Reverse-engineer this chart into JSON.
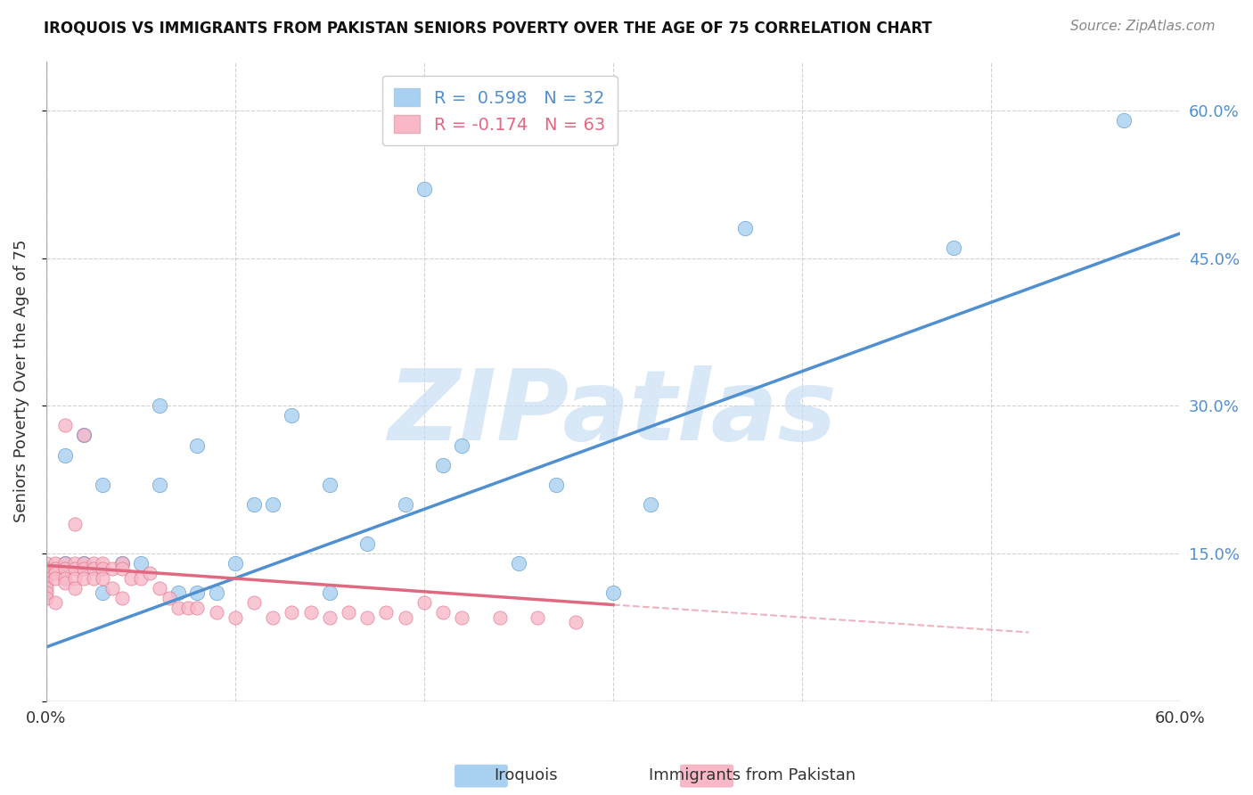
{
  "title": "IROQUOIS VS IMMIGRANTS FROM PAKISTAN SENIORS POVERTY OVER THE AGE OF 75 CORRELATION CHART",
  "source": "Source: ZipAtlas.com",
  "ylabel": "Seniors Poverty Over the Age of 75",
  "xmin": 0.0,
  "xmax": 0.6,
  "ymin": 0.0,
  "ymax": 0.65,
  "xticks": [
    0.0,
    0.1,
    0.2,
    0.3,
    0.4,
    0.5,
    0.6
  ],
  "ytick_positions": [
    0.0,
    0.15,
    0.3,
    0.45,
    0.6
  ],
  "blue_color": "#A8D0F0",
  "pink_color": "#F8B8C8",
  "trend_blue": "#5090D0",
  "trend_pink": "#E06880",
  "watermark": "ZIPatlas",
  "iroquois_x": [
    0.01,
    0.02,
    0.03,
    0.04,
    0.05,
    0.06,
    0.07,
    0.08,
    0.09,
    0.1,
    0.11,
    0.13,
    0.15,
    0.17,
    0.19,
    0.21,
    0.22,
    0.25,
    0.27,
    0.2,
    0.37,
    0.48,
    0.57,
    0.3,
    0.32,
    0.01,
    0.02,
    0.03,
    0.06,
    0.08,
    0.12,
    0.15
  ],
  "iroquois_y": [
    0.14,
    0.14,
    0.22,
    0.14,
    0.14,
    0.22,
    0.11,
    0.26,
    0.11,
    0.14,
    0.2,
    0.29,
    0.22,
    0.16,
    0.2,
    0.24,
    0.26,
    0.14,
    0.22,
    0.52,
    0.48,
    0.46,
    0.59,
    0.11,
    0.2,
    0.25,
    0.27,
    0.11,
    0.3,
    0.11,
    0.2,
    0.11
  ],
  "pakistan_x": [
    0.0,
    0.0,
    0.0,
    0.0,
    0.0,
    0.0,
    0.0,
    0.0,
    0.005,
    0.005,
    0.005,
    0.005,
    0.005,
    0.01,
    0.01,
    0.01,
    0.01,
    0.01,
    0.015,
    0.015,
    0.015,
    0.015,
    0.015,
    0.02,
    0.02,
    0.02,
    0.02,
    0.025,
    0.025,
    0.025,
    0.03,
    0.03,
    0.03,
    0.035,
    0.035,
    0.04,
    0.04,
    0.04,
    0.045,
    0.05,
    0.055,
    0.06,
    0.065,
    0.07,
    0.075,
    0.08,
    0.09,
    0.1,
    0.11,
    0.12,
    0.13,
    0.14,
    0.15,
    0.16,
    0.17,
    0.18,
    0.19,
    0.2,
    0.21,
    0.22,
    0.24,
    0.26,
    0.28
  ],
  "pakistan_y": [
    0.14,
    0.135,
    0.13,
    0.125,
    0.12,
    0.115,
    0.11,
    0.105,
    0.14,
    0.135,
    0.13,
    0.125,
    0.1,
    0.14,
    0.135,
    0.125,
    0.12,
    0.28,
    0.14,
    0.135,
    0.125,
    0.115,
    0.18,
    0.14,
    0.135,
    0.125,
    0.27,
    0.14,
    0.135,
    0.125,
    0.14,
    0.135,
    0.125,
    0.135,
    0.115,
    0.14,
    0.135,
    0.105,
    0.125,
    0.125,
    0.13,
    0.115,
    0.105,
    0.095,
    0.095,
    0.095,
    0.09,
    0.085,
    0.1,
    0.085,
    0.09,
    0.09,
    0.085,
    0.09,
    0.085,
    0.09,
    0.085,
    0.1,
    0.09,
    0.085,
    0.085,
    0.085,
    0.08
  ],
  "trend_blue_x0": 0.0,
  "trend_blue_y0": 0.055,
  "trend_blue_x1": 0.6,
  "trend_blue_y1": 0.475,
  "trend_pink_x0": 0.0,
  "trend_pink_y0": 0.138,
  "trend_pink_x1": 0.3,
  "trend_pink_y1": 0.098,
  "trend_pink_dash_x1": 0.52,
  "trend_pink_dash_y1": 0.07
}
